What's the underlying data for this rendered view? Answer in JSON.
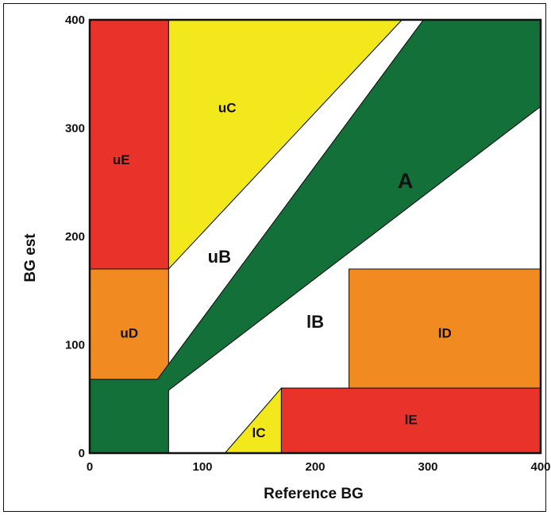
{
  "chart_data": {
    "type": "area",
    "title": "",
    "xlabel": "Reference BG",
    "ylabel": "BG est",
    "xlim": [
      0,
      400
    ],
    "ylim": [
      0,
      400
    ],
    "x_ticks": [
      "0",
      "100",
      "200",
      "300",
      "400"
    ],
    "y_ticks": [
      "0",
      "100",
      "200",
      "300",
      "400"
    ],
    "colors": {
      "red": "#e8322a",
      "yellow": "#f3e81c",
      "orange": "#f28a22",
      "green": "#127038",
      "white": "#ffffff",
      "outline": "#111111"
    },
    "zones": [
      {
        "name": "uE",
        "label": "uE",
        "color": "red",
        "label_at": [
          28,
          270
        ],
        "label_size": "medium",
        "polygon": [
          [
            0,
            400
          ],
          [
            70,
            400
          ],
          [
            70,
            170
          ],
          [
            0,
            170
          ]
        ]
      },
      {
        "name": "uD",
        "label": "uD",
        "color": "orange",
        "label_at": [
          35,
          110
        ],
        "label_size": "medium",
        "polygon": [
          [
            0,
            170
          ],
          [
            70,
            170
          ],
          [
            70,
            68
          ],
          [
            0,
            68
          ]
        ]
      },
      {
        "name": "uC",
        "label": "uC",
        "color": "yellow",
        "label_at": [
          122,
          318
        ],
        "label_size": "medium",
        "polygon": [
          [
            70,
            400
          ],
          [
            277,
            400
          ],
          [
            70,
            170
          ]
        ]
      },
      {
        "name": "uB",
        "label": "uB",
        "color": "white",
        "label_at": [
          115,
          180
        ],
        "label_size": "large",
        "polygon": [
          [
            70,
            170
          ],
          [
            277,
            400
          ],
          [
            296,
            400
          ],
          [
            60,
            68
          ],
          [
            70,
            68
          ]
        ]
      },
      {
        "name": "A",
        "label": "A",
        "color": "green",
        "label_at": [
          280,
          250
        ],
        "label_size": "xlarge",
        "polygon": [
          [
            0,
            68
          ],
          [
            60,
            68
          ],
          [
            296,
            400
          ],
          [
            400,
            400
          ],
          [
            400,
            320
          ],
          [
            70,
            58
          ],
          [
            70,
            0
          ],
          [
            0,
            0
          ]
        ]
      },
      {
        "name": "lB",
        "label": "lB",
        "color": "white",
        "label_at": [
          200,
          120
        ],
        "label_size": "large",
        "polygon": [
          [
            70,
            58
          ],
          [
            400,
            320
          ],
          [
            400,
            170
          ],
          [
            230,
            170
          ],
          [
            230,
            60
          ],
          [
            170,
            60
          ],
          [
            120,
            0
          ],
          [
            70,
            0
          ]
        ]
      },
      {
        "name": "lC",
        "label": "lC",
        "color": "yellow",
        "label_at": [
          150,
          18
        ],
        "label_size": "medium",
        "polygon": [
          [
            120,
            0
          ],
          [
            170,
            60
          ],
          [
            170,
            0
          ]
        ]
      },
      {
        "name": "lD",
        "label": "lD",
        "color": "orange",
        "label_at": [
          315,
          110
        ],
        "label_size": "medium",
        "polygon": [
          [
            230,
            170
          ],
          [
            400,
            170
          ],
          [
            400,
            60
          ],
          [
            230,
            60
          ]
        ]
      },
      {
        "name": "lE",
        "label": "lE",
        "color": "red",
        "label_at": [
          285,
          30
        ],
        "label_size": "medium",
        "polygon": [
          [
            170,
            60
          ],
          [
            400,
            60
          ],
          [
            400,
            0
          ],
          [
            170,
            0
          ]
        ]
      }
    ],
    "grid": false,
    "legend": "none"
  }
}
